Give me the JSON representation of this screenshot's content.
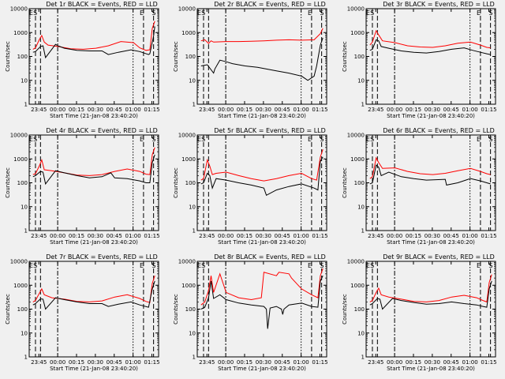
{
  "chart_data": [
    {
      "type": "line",
      "title": "Det 1r BLACK = Events, RED = LLD",
      "xlabel": "Start Time (21-Jan-08 23:40:20)",
      "ylabel": "Counts/sec",
      "xticks": [
        "23:45",
        "00:00",
        "00:15",
        "00:30",
        "00:45",
        "01:00",
        "01:15"
      ],
      "yticks": [
        "1",
        "10",
        "100",
        "1000",
        "10000"
      ],
      "yscale": "log",
      "ylim": [
        1,
        10000
      ],
      "marker_labels": [
        "E",
        "S",
        "E",
        "S"
      ],
      "series": [
        {
          "name": "Events",
          "color": "#000000",
          "x": [
            0,
            2,
            6,
            8,
            10,
            18,
            20,
            25,
            35,
            45,
            55,
            60,
            68,
            78,
            85,
            92,
            93,
            96,
            97
          ],
          "values": [
            150,
            160,
            260,
            280,
            90,
            320,
            280,
            220,
            180,
            170,
            170,
            120,
            150,
            190,
            160,
            120,
            130,
            700,
            1800
          ]
        },
        {
          "name": "LLD",
          "color": "#ff0000",
          "x": [
            0,
            2,
            5,
            7,
            9,
            12,
            20,
            30,
            40,
            50,
            60,
            70,
            80,
            85,
            90,
            93,
            95,
            97
          ],
          "values": [
            200,
            230,
            500,
            750,
            400,
            300,
            260,
            210,
            200,
            220,
            280,
            420,
            380,
            230,
            180,
            190,
            1500,
            3000
          ]
        }
      ]
    },
    {
      "type": "line",
      "title": "Det 2r BLACK = Events, RED = LLD",
      "xlabel": "Start Time (21-Jan-08 23:40:20)",
      "ylabel": "Counts/sec",
      "xticks": [
        "23:45",
        "00:00",
        "00:15",
        "00:30",
        "00:45",
        "01:00",
        "01:15"
      ],
      "yticks": [
        "1",
        "10",
        "100",
        "1000",
        "10000"
      ],
      "yscale": "log",
      "ylim": [
        1,
        10000
      ],
      "marker_labels": [
        "E",
        "S",
        "E",
        "S"
      ],
      "series": [
        {
          "name": "Events",
          "color": "#000000",
          "x": [
            0,
            5,
            10,
            11,
            15,
            20,
            25,
            35,
            45,
            60,
            70,
            80,
            85,
            90,
            92,
            95,
            97
          ],
          "values": [
            40,
            45,
            20,
            30,
            70,
            60,
            50,
            40,
            35,
            25,
            20,
            15,
            10,
            15,
            40,
            300,
            600
          ]
        },
        {
          "name": "LLD",
          "color": "#ff0000",
          "x": [
            0,
            3,
            6,
            8,
            10,
            20,
            30,
            40,
            50,
            60,
            70,
            80,
            90,
            95,
            97
          ],
          "values": [
            450,
            500,
            350,
            450,
            400,
            420,
            420,
            430,
            450,
            480,
            500,
            480,
            500,
            900,
            1500
          ]
        }
      ]
    },
    {
      "type": "line",
      "title": "Det 3r BLACK = Events, RED = LLD",
      "xlabel": "Start Time (21-Jan-08 23:40:20)",
      "ylabel": "Counts/sec",
      "xticks": [
        "23:45",
        "00:00",
        "00:15",
        "00:30",
        "00:45",
        "01:00",
        "01:15"
      ],
      "yticks": [
        "1",
        "10",
        "100",
        "1000",
        "10000"
      ],
      "yscale": "log",
      "ylim": [
        1,
        10000
      ],
      "marker_labels": [
        "E",
        "S",
        "E",
        "S"
      ],
      "series": [
        {
          "name": "Events",
          "color": "#000000",
          "x": [
            0,
            2,
            5,
            7,
            9,
            15,
            25,
            35,
            45,
            55,
            65,
            75,
            82,
            88,
            93,
            96
          ],
          "values": [
            180,
            200,
            500,
            450,
            260,
            220,
            170,
            150,
            140,
            160,
            200,
            230,
            180,
            150,
            130,
            120
          ]
        },
        {
          "name": "LLD",
          "color": "#ff0000",
          "x": [
            0,
            2,
            5,
            7,
            10,
            20,
            30,
            40,
            50,
            60,
            70,
            80,
            88,
            93,
            96
          ],
          "values": [
            300,
            400,
            1200,
            800,
            450,
            380,
            280,
            250,
            240,
            280,
            360,
            400,
            300,
            240,
            230
          ]
        }
      ]
    },
    {
      "type": "line",
      "title": "Det 4r BLACK = Events, RED = LLD",
      "xlabel": "Start Time (21-Jan-08 23:40:20)",
      "ylabel": "Counts/sec",
      "xticks": [
        "23:45",
        "00:00",
        "00:15",
        "00:30",
        "00:45",
        "01:00",
        "01:15"
      ],
      "yticks": [
        "1",
        "10",
        "100",
        "1000",
        "10000"
      ],
      "yscale": "log",
      "ylim": [
        1,
        10000
      ],
      "marker_labels": [
        "E",
        "S",
        "E",
        "S"
      ],
      "series": [
        {
          "name": "Events",
          "color": "#000000",
          "x": [
            0,
            2,
            6,
            8,
            10,
            18,
            25,
            35,
            45,
            55,
            62,
            65,
            75,
            85,
            90,
            93,
            95,
            97
          ],
          "values": [
            180,
            200,
            300,
            280,
            90,
            320,
            260,
            200,
            160,
            180,
            260,
            160,
            150,
            120,
            100,
            100,
            700,
            1500
          ]
        },
        {
          "name": "LLD",
          "color": "#ff0000",
          "x": [
            0,
            2,
            5,
            7,
            9,
            15,
            25,
            35,
            45,
            55,
            65,
            75,
            85,
            90,
            93,
            95,
            97
          ],
          "values": [
            220,
            240,
            500,
            900,
            350,
            320,
            260,
            210,
            200,
            220,
            300,
            380,
            300,
            230,
            220,
            1500,
            3000
          ]
        }
      ]
    },
    {
      "type": "line",
      "title": "Det 5r BLACK = Events, RED = LLD",
      "xlabel": "Start Time (21-Jan-08 23:40:20)",
      "ylabel": "Counts/sec",
      "xticks": [
        "23:45",
        "00:00",
        "00:15",
        "00:30",
        "00:45",
        "01:00",
        "01:15"
      ],
      "yticks": [
        "1",
        "10",
        "100",
        "1000",
        "10000"
      ],
      "yscale": "log",
      "ylim": [
        1,
        10000
      ],
      "marker_labels": [
        "E",
        "S",
        "E",
        "S"
      ],
      "series": [
        {
          "name": "Events",
          "color": "#000000",
          "x": [
            0,
            2,
            5,
            7,
            9,
            12,
            20,
            30,
            40,
            50,
            52,
            60,
            70,
            80,
            90,
            93,
            95,
            97
          ],
          "values": [
            90,
            100,
            250,
            200,
            60,
            150,
            130,
            100,
            80,
            60,
            30,
            50,
            70,
            90,
            60,
            50,
            800,
            1200
          ]
        },
        {
          "name": "LLD",
          "color": "#ff0000",
          "x": [
            0,
            2,
            5,
            7,
            9,
            12,
            20,
            30,
            40,
            50,
            60,
            70,
            80,
            88,
            92,
            95,
            97
          ],
          "values": [
            130,
            150,
            900,
            500,
            220,
            250,
            280,
            200,
            150,
            120,
            150,
            200,
            250,
            150,
            130,
            1200,
            2500
          ]
        }
      ]
    },
    {
      "type": "line",
      "title": "Det 6r BLACK = Events, RED = LLD",
      "xlabel": "Start Time (21-Jan-08 23:40:20)",
      "ylabel": "Counts/sec",
      "xticks": [
        "23:45",
        "00:00",
        "00:15",
        "00:30",
        "00:45",
        "01:00",
        "01:15"
      ],
      "yticks": [
        "1",
        "10",
        "100",
        "1000",
        "10000"
      ],
      "yscale": "log",
      "ylim": [
        1,
        10000
      ],
      "marker_labels": [
        "E",
        "S",
        "E",
        "S"
      ],
      "series": [
        {
          "name": "Events",
          "color": "#000000",
          "x": [
            0,
            2,
            5,
            7,
            9,
            15,
            25,
            35,
            45,
            60,
            61,
            70,
            80,
            88,
            93,
            96
          ],
          "values": [
            90,
            100,
            550,
            450,
            200,
            280,
            180,
            150,
            130,
            140,
            80,
            100,
            150,
            120,
            100,
            90
          ]
        },
        {
          "name": "LLD",
          "color": "#ff0000",
          "x": [
            0,
            2,
            5,
            7,
            10,
            20,
            30,
            40,
            50,
            60,
            70,
            80,
            88,
            93,
            96
          ],
          "values": [
            150,
            180,
            1100,
            700,
            400,
            420,
            300,
            240,
            220,
            250,
            320,
            400,
            300,
            240,
            220
          ]
        }
      ]
    },
    {
      "type": "line",
      "title": "Det 7r BLACK = Events, RED = LLD",
      "xlabel": "Start Time (21-Jan-08 23:40:20)",
      "ylabel": "Counts/sec",
      "xticks": [
        "23:45",
        "00:00",
        "00:15",
        "00:30",
        "00:45",
        "01:00",
        "01:15"
      ],
      "yticks": [
        "1",
        "10",
        "100",
        "1000",
        "10000"
      ],
      "yscale": "log",
      "ylim": [
        1,
        10000
      ],
      "marker_labels": [
        "E",
        "S",
        "E",
        "S"
      ],
      "series": [
        {
          "name": "Events",
          "color": "#000000",
          "x": [
            0,
            2,
            6,
            8,
            10,
            18,
            25,
            35,
            45,
            55,
            60,
            68,
            78,
            85,
            92,
            95,
            97
          ],
          "values": [
            150,
            170,
            270,
            260,
            100,
            300,
            250,
            200,
            170,
            170,
            130,
            160,
            200,
            150,
            120,
            700,
            1500
          ]
        },
        {
          "name": "LLD",
          "color": "#ff0000",
          "x": [
            0,
            2,
            5,
            7,
            9,
            15,
            25,
            35,
            45,
            55,
            65,
            75,
            85,
            90,
            93,
            95,
            97
          ],
          "values": [
            200,
            230,
            450,
            700,
            400,
            300,
            260,
            210,
            200,
            220,
            320,
            400,
            280,
            210,
            190,
            1200,
            2500
          ]
        }
      ]
    },
    {
      "type": "line",
      "title": "Det 8r BLACK = Events, RED = LLD",
      "xlabel": "Start Time (21-Jan-08 23:40:20)",
      "ylabel": "Counts/sec",
      "xticks": [
        "23:45",
        "00:00",
        "00:15",
        "00:30",
        "00:45",
        "01:00",
        "01:15"
      ],
      "yticks": [
        "1",
        "10",
        "100",
        "1000",
        "10000"
      ],
      "yscale": "log",
      "ylim": [
        1,
        10000
      ],
      "marker_labels": [
        "E",
        "S",
        "E",
        "S"
      ],
      "series": [
        {
          "name": "Events",
          "color": "#000000",
          "x": [
            0,
            3,
            6,
            8,
            10,
            15,
            20,
            30,
            40,
            50,
            52,
            53,
            55,
            60,
            64,
            65,
            66,
            70,
            80,
            88,
            93,
            95,
            97
          ],
          "values": [
            100,
            120,
            300,
            1500,
            280,
            400,
            250,
            180,
            150,
            130,
            100,
            15,
            110,
            130,
            100,
            60,
            100,
            150,
            180,
            130,
            120,
            1500,
            2500
          ]
        },
        {
          "name": "LLD",
          "color": "#ff0000",
          "x": [
            0,
            3,
            6,
            8,
            10,
            15,
            20,
            30,
            40,
            48,
            50,
            60,
            62,
            70,
            72,
            80,
            88,
            93,
            95,
            97
          ],
          "values": [
            150,
            200,
            600,
            2500,
            500,
            3000,
            500,
            300,
            250,
            300,
            3500,
            2500,
            3500,
            3000,
            2000,
            700,
            400,
            300,
            2500,
            5000
          ]
        }
      ]
    },
    {
      "type": "line",
      "title": "Det 9r BLACK = Events, RED = LLD",
      "xlabel": "Start Time (21-Jan-08 23:40:20)",
      "ylabel": "Counts/sec",
      "xticks": [
        "23:45",
        "00:00",
        "00:15",
        "00:30",
        "00:45",
        "01:00",
        "01:15"
      ],
      "yticks": [
        "1",
        "10",
        "100",
        "1000",
        "10000"
      ],
      "yscale": "log",
      "ylim": [
        1,
        10000
      ],
      "marker_labels": [
        "E",
        "S",
        "E",
        "S"
      ],
      "series": [
        {
          "name": "Events",
          "color": "#000000",
          "x": [
            0,
            2,
            6,
            8,
            10,
            18,
            25,
            35,
            45,
            55,
            65,
            75,
            85,
            90,
            93,
            95,
            97
          ],
          "values": [
            150,
            170,
            280,
            260,
            100,
            280,
            230,
            190,
            160,
            170,
            200,
            170,
            150,
            130,
            120,
            700,
            1500
          ]
        },
        {
          "name": "LLD",
          "color": "#ff0000",
          "x": [
            0,
            2,
            5,
            7,
            9,
            15,
            25,
            35,
            45,
            55,
            65,
            75,
            85,
            90,
            93,
            95,
            97
          ],
          "values": [
            200,
            230,
            500,
            750,
            400,
            320,
            260,
            210,
            200,
            230,
            320,
            380,
            300,
            230,
            200,
            1300,
            2800
          ]
        }
      ]
    }
  ]
}
